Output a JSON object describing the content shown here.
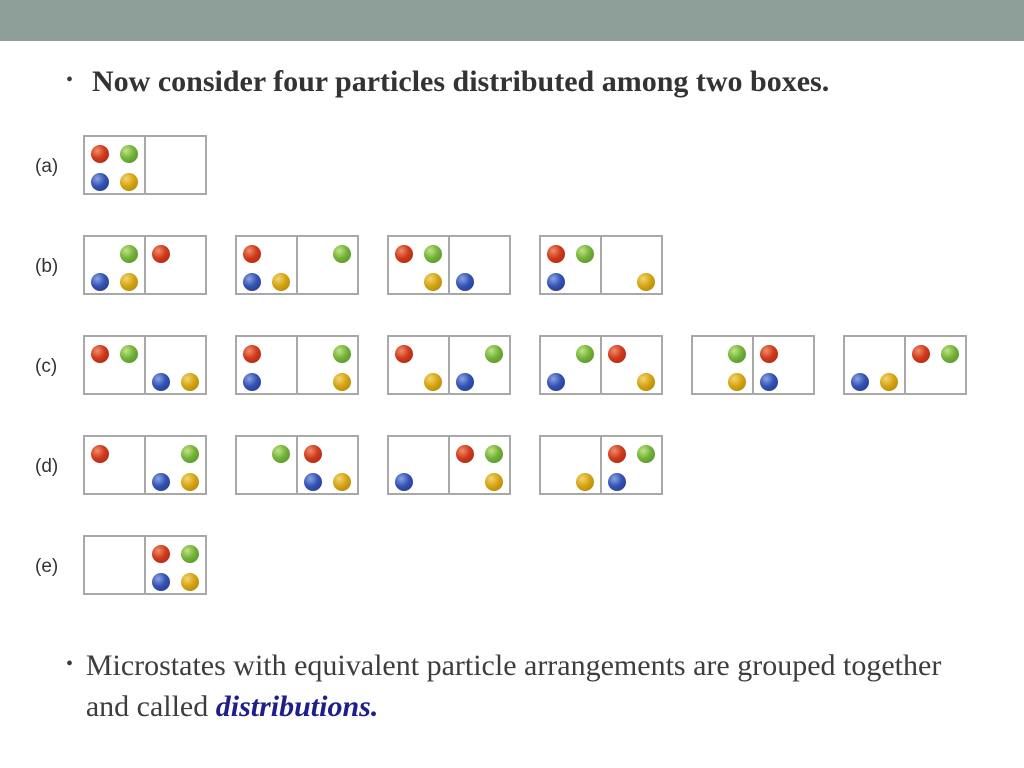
{
  "slide": {
    "heading": "Now consider four particles distributed among two boxes.",
    "bullet_symbol": "•",
    "footer_text": "Microstates with equivalent particle arrangements are grouped together and called",
    "footer_term": "distributions",
    "footer_end": "."
  },
  "colors": {
    "red": "#cf3a1c",
    "green": "#74b23a",
    "blue": "#3553b4",
    "yellow": "#d5a413",
    "box_border": "#a8a8a8",
    "top_band": "#8e9e98",
    "term": "#1f1f8c"
  },
  "diagram": {
    "rows": [
      {
        "label": "(a)",
        "microstates": [
          {
            "left": {
              "tl": "red",
              "tr": "green",
              "bl": "blue",
              "br": "yellow"
            },
            "right": {}
          }
        ]
      },
      {
        "label": "(b)",
        "microstates": [
          {
            "left": {
              "tr": "green",
              "bl": "blue",
              "br": "yellow"
            },
            "right": {
              "tl": "red"
            }
          },
          {
            "left": {
              "tl": "red",
              "bl": "blue",
              "br": "yellow"
            },
            "right": {
              "tr": "green"
            }
          },
          {
            "left": {
              "tl": "red",
              "tr": "green",
              "br": "yellow"
            },
            "right": {
              "bl": "blue"
            }
          },
          {
            "left": {
              "tl": "red",
              "tr": "green",
              "bl": "blue"
            },
            "right": {
              "br": "yellow"
            }
          }
        ]
      },
      {
        "label": "(c)",
        "microstates": [
          {
            "left": {
              "tl": "red",
              "tr": "green"
            },
            "right": {
              "bl": "blue",
              "br": "yellow"
            }
          },
          {
            "left": {
              "tl": "red",
              "bl": "blue"
            },
            "right": {
              "tr": "green",
              "br": "yellow"
            }
          },
          {
            "left": {
              "tl": "red",
              "br": "yellow"
            },
            "right": {
              "tr": "green",
              "bl": "blue"
            }
          },
          {
            "left": {
              "tr": "green",
              "bl": "blue"
            },
            "right": {
              "tl": "red",
              "br": "yellow"
            }
          },
          {
            "left": {
              "tr": "green",
              "br": "yellow"
            },
            "right": {
              "tl": "red",
              "bl": "blue"
            }
          },
          {
            "left": {
              "bl": "blue",
              "br": "yellow"
            },
            "right": {
              "tl": "red",
              "tr": "green"
            }
          }
        ]
      },
      {
        "label": "(d)",
        "microstates": [
          {
            "left": {
              "tl": "red"
            },
            "right": {
              "tr": "green",
              "bl": "blue",
              "br": "yellow"
            }
          },
          {
            "left": {
              "tr": "green"
            },
            "right": {
              "tl": "red",
              "bl": "blue",
              "br": "yellow"
            }
          },
          {
            "left": {
              "bl": "blue"
            },
            "right": {
              "tl": "red",
              "tr": "green",
              "br": "yellow"
            }
          },
          {
            "left": {
              "br": "yellow"
            },
            "right": {
              "tl": "red",
              "tr": "green",
              "bl": "blue"
            }
          }
        ]
      },
      {
        "label": "(e)",
        "microstates": [
          {
            "left": {},
            "right": {
              "tl": "red",
              "tr": "green",
              "bl": "blue",
              "br": "yellow"
            }
          }
        ]
      }
    ]
  }
}
